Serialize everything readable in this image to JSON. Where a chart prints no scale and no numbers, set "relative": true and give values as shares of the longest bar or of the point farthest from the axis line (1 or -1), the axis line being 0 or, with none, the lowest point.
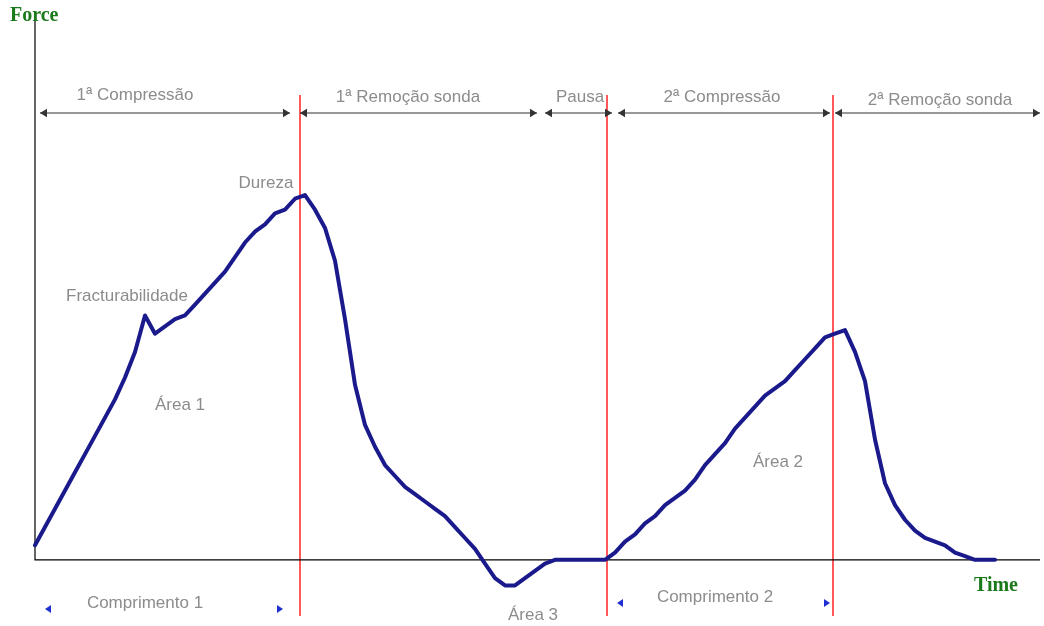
{
  "chart_data": {
    "type": "line",
    "relative": true,
    "xlabel": "Time",
    "legend": false,
    "tick_labels": false,
    "marker": "none",
    "categories": [
      null,
      null,
      null,
      null,
      null,
      null,
      null,
      null,
      null,
      null,
      null,
      null,
      null,
      null,
      null,
      null,
      null,
      null,
      null,
      null,
      null,
      null,
      null,
      null,
      null,
      null,
      null,
      null,
      null,
      null,
      null,
      null,
      null,
      null,
      null,
      null,
      null,
      null,
      null,
      null,
      null,
      null,
      null,
      null,
      null,
      null,
      null,
      null,
      null,
      null,
      null,
      null,
      null,
      null,
      null,
      null,
      null,
      null,
      null,
      null,
      null,
      null,
      null,
      null,
      null,
      null,
      null,
      null,
      null,
      null,
      null,
      null,
      null,
      null,
      null,
      null,
      null,
      null,
      null,
      null,
      null,
      null,
      null,
      null,
      null,
      null,
      null,
      null,
      null,
      null,
      null,
      null,
      null,
      null,
      null,
      null,
      null
    ],
    "series": [
      {
        "color": "#1a1a8c",
        "values": [
          0.04,
          0.09,
          0.14,
          0.19,
          0.24,
          0.29,
          0.34,
          0.39,
          0.44,
          0.5,
          0.57,
          0.67,
          0.62,
          0.64,
          0.66,
          0.67,
          0.7,
          0.73,
          0.76,
          0.79,
          0.83,
          0.87,
          0.9,
          0.92,
          0.95,
          0.96,
          0.99,
          1,
          0.96,
          0.91,
          0.82,
          0.66,
          0.48,
          0.37,
          0.31,
          0.26,
          0.23,
          0.2,
          0.18,
          0.16,
          0.14,
          0.12,
          0.09,
          0.06,
          0.03,
          -0.01,
          -0.05,
          -0.07,
          -0.07,
          -0.05,
          -0.03,
          -0.01,
          0,
          0,
          0,
          0,
          0,
          0,
          0.02,
          0.05,
          0.07,
          0.1,
          0.12,
          0.15,
          0.17,
          0.19,
          0.22,
          0.26,
          0.29,
          0.32,
          0.36,
          0.39,
          0.42,
          0.45,
          0.47,
          0.49,
          0.52,
          0.55,
          0.58,
          0.61,
          0.62,
          0.63,
          0.57,
          0.49,
          0.33,
          0.21,
          0.15,
          0.11,
          0.08,
          0.06,
          0.05,
          0.04,
          0.02,
          0.01,
          0,
          0,
          0
        ]
      }
    ],
    "annotations": [
      "1ª Compressão",
      "1ª Remoção sonda",
      "Pausa",
      "2ª Compressão",
      "2ª Remoção sonda",
      "Dureza",
      "Fracturabilidade",
      "Área 1",
      "Área 2",
      "Área 3",
      "Comprimento 1",
      "Comprimento 2",
      "Force"
    ]
  }
}
